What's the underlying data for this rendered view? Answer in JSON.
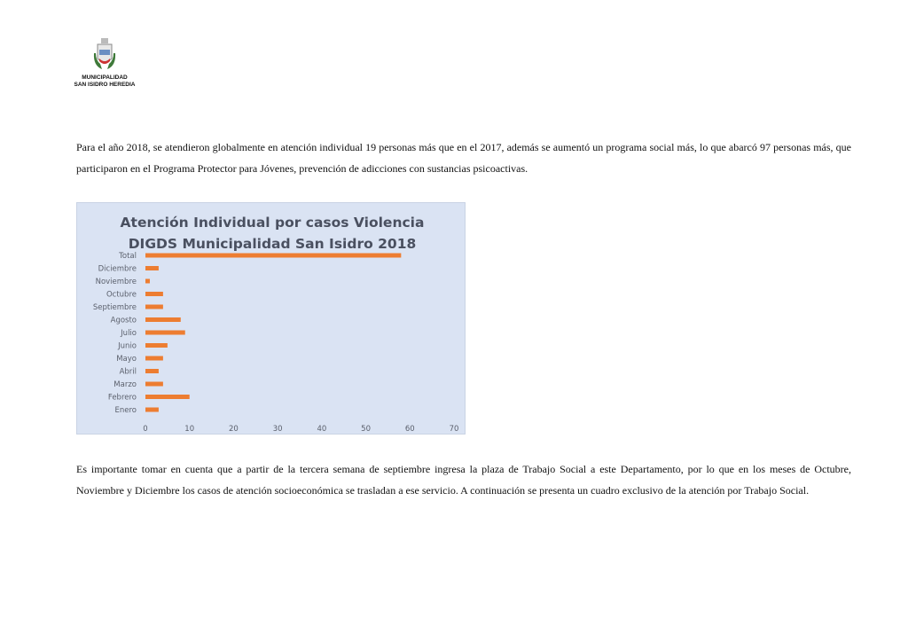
{
  "header": {
    "logo_lines": [
      "MUNICIPALIDAD",
      "SAN ISIDRO HEREDIA"
    ]
  },
  "paragraphs": [
    "Para el año 2018, se atendieron globalmente en atención individual 19 personas más que en el 2017, además se aumentó un programa social más, lo que abarcó 97 personas más, que participaron en el Programa Protector para Jóvenes, prevención de adicciones con sustancias psicoactivas.",
    "Es importante tomar en cuenta que a partir de la tercera semana de septiembre ingresa la plaza de Trabajo Social a este Departamento, por lo que en los meses de Octubre, Noviembre y Diciembre los casos de atención socioeconómica se trasladan a ese servicio. A continuación se presenta un cuadro exclusivo de la atención por Trabajo Social."
  ],
  "chart_data": {
    "type": "bar",
    "orientation": "horizontal",
    "title": [
      "Atención Individual por casos Violencia",
      "DIGDS Municipalidad San Isidro 2018"
    ],
    "categories": [
      "Total",
      "Diciembre",
      "Noviembre",
      "Octubre",
      "Septiembre",
      "Agosto",
      "Julio",
      "Junio",
      "Mayo",
      "Abril",
      "Marzo",
      "Febrero",
      "Enero"
    ],
    "values": [
      58,
      3,
      1,
      4,
      4,
      8,
      9,
      5,
      4,
      3,
      4,
      10,
      3
    ],
    "xlim": [
      0,
      70
    ],
    "xticks": [
      "0",
      "10",
      "20",
      "30",
      "40",
      "50",
      "60",
      "70"
    ],
    "grid": false,
    "bar_color": "#ed7d31",
    "background_color": "#dae3f3"
  }
}
